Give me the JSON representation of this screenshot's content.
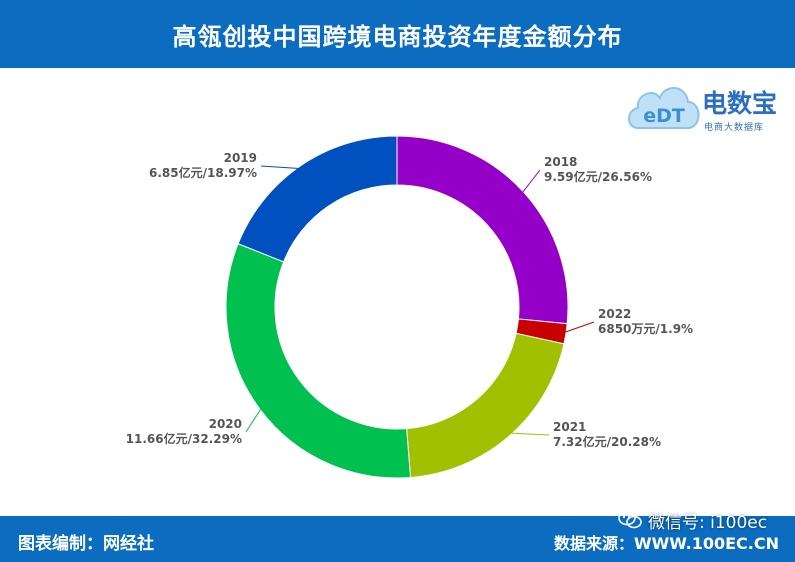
{
  "header": {
    "title": "高瓴创投中国跨境电商投资年度金额分布"
  },
  "footer": {
    "compiler": "图表编制：网经社",
    "source": "数据来源：WWW.100EC.CN",
    "watermark": "微信号: i100ec"
  },
  "logo": {
    "name": "电数宝",
    "sub": "电商大数据库",
    "mark": "eDT"
  },
  "colors": {
    "header_bg": "#0b6cc0",
    "2018": "#9400c8",
    "2022": "#c80000",
    "2021": "#a0c000",
    "2020": "#00c050",
    "2019": "#0050c0"
  },
  "chart_data": {
    "type": "pie",
    "style": "donut",
    "title": "高瓴创投中国跨境电商投资年度金额分布",
    "start": "top, clockwise",
    "slices": [
      {
        "year": "2018",
        "amount": "9.59亿元",
        "percent": 26.56,
        "label": "9.59亿元/26.56%",
        "color": "#9400c8"
      },
      {
        "year": "2022",
        "amount": "6850万元",
        "percent": 1.9,
        "label": "6850万元/1.9%",
        "color": "#c80000"
      },
      {
        "year": "2021",
        "amount": "7.32亿元",
        "percent": 20.28,
        "label": "7.32亿元/20.28%",
        "color": "#a0c000"
      },
      {
        "year": "2020",
        "amount": "11.66亿元",
        "percent": 32.29,
        "label": "11.66亿元/32.29%",
        "color": "#00c050"
      },
      {
        "year": "2019",
        "amount": "6.85亿元",
        "percent": 18.97,
        "label": "6.85亿元/18.97%",
        "color": "#0050c0"
      }
    ]
  }
}
